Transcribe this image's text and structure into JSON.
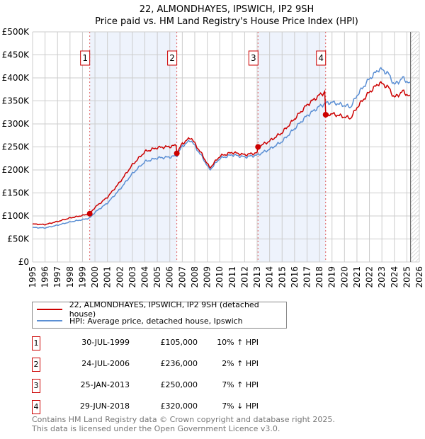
{
  "chart_data": {
    "type": "line",
    "title": "22, ALMONDHAYES, IPSWICH, IP2 9SH",
    "subtitle": "Price paid vs. HM Land Registry's House Price Index (HPI)",
    "xlim": [
      1995,
      2026
    ],
    "ylim": [
      0,
      500000
    ],
    "x_ticks": [
      "1995",
      "1996",
      "1997",
      "1998",
      "1999",
      "2000",
      "2001",
      "2002",
      "2003",
      "2004",
      "2005",
      "2006",
      "2007",
      "2008",
      "2009",
      "2010",
      "2011",
      "2012",
      "2013",
      "2014",
      "2015",
      "2016",
      "2017",
      "2018",
      "2019",
      "2020",
      "2021",
      "2022",
      "2023",
      "2024",
      "2025",
      "2026"
    ],
    "y_ticks": [
      {
        "v": 0,
        "label": "£0"
      },
      {
        "v": 50000,
        "label": "£50K"
      },
      {
        "v": 100000,
        "label": "£100K"
      },
      {
        "v": 150000,
        "label": "£150K"
      },
      {
        "v": 200000,
        "label": "£200K"
      },
      {
        "v": 250000,
        "label": "£250K"
      },
      {
        "v": 300000,
        "label": "£300K"
      },
      {
        "v": 350000,
        "label": "£350K"
      },
      {
        "v": 400000,
        "label": "£400K"
      },
      {
        "v": 450000,
        "label": "£450K"
      },
      {
        "v": 500000,
        "label": "£500K"
      }
    ],
    "hpi": {
      "name": "HPI: Average price, detached house, Ipswich",
      "color": "#5b8fd4",
      "x": [
        1995,
        1996,
        1997,
        1998,
        1999,
        1999.58,
        2000,
        2001,
        2002,
        2003,
        2004,
        2005,
        2006,
        2006.56,
        2007,
        2007.7,
        2008,
        2008.6,
        2009.2,
        2010,
        2011,
        2012,
        2013,
        2013.07,
        2014,
        2015,
        2016,
        2017,
        2018,
        2018.49,
        2019,
        2020,
        2020.5,
        2021,
        2022,
        2022.8,
        2023.5,
        2024,
        2024.7,
        2025.3
      ],
      "y": [
        75000,
        74000,
        80000,
        87000,
        92000,
        95500,
        108000,
        128000,
        158000,
        192000,
        218000,
        226000,
        228000,
        231000,
        252000,
        265000,
        252000,
        228000,
        200000,
        225000,
        233000,
        228000,
        232000,
        233000,
        245000,
        262000,
        290000,
        318000,
        338000,
        345000,
        347000,
        340000,
        337000,
        362000,
        398000,
        420000,
        410000,
        385000,
        400000,
        385000
      ]
    },
    "property": {
      "name": "22, ALMONDHAYES, IPSWICH, IP2 9SH (detached house)",
      "color": "#cc0000"
    },
    "sales": [
      {
        "n": "1",
        "x": 1999.58,
        "date": "30-JUL-1999",
        "price": 105000,
        "price_label": "£105,000",
        "hpi": "10% ↑ HPI"
      },
      {
        "n": "2",
        "x": 2006.56,
        "date": "24-JUL-2006",
        "price": 236000,
        "price_label": "£236,000",
        "hpi": "2% ↑ HPI"
      },
      {
        "n": "3",
        "x": 2013.07,
        "date": "25-JAN-2013",
        "price": 250000,
        "price_label": "£250,000",
        "hpi": "7% ↑ HPI"
      },
      {
        "n": "4",
        "x": 2018.49,
        "date": "29-JUN-2018",
        "price": 320000,
        "price_label": "£320,000",
        "hpi": "7% ↓ HPI"
      }
    ],
    "data_end": 2025.3,
    "grid": true,
    "legend": "bottom"
  },
  "footer": {
    "line1": "Contains HM Land Registry data © Crown copyright and database right 2025.",
    "line2": "This data is licensed under the Open Government Licence v3.0."
  }
}
